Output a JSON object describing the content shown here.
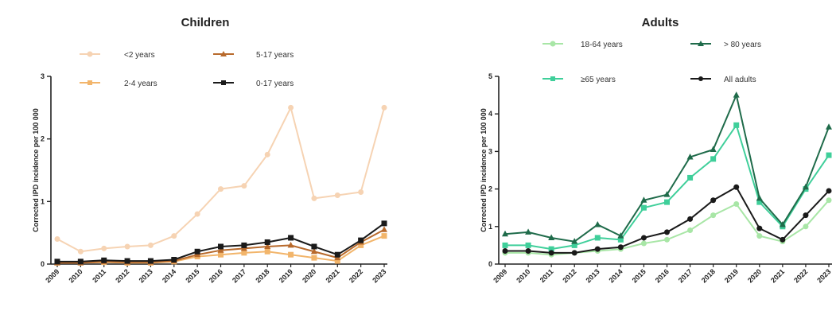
{
  "chart_data": [
    {
      "type": "line",
      "title": "Children",
      "ylabel": "Corrected IPD incidence per 100 000",
      "xlabel": "",
      "categories": [
        "2009",
        "2010",
        "2011",
        "2012",
        "2013",
        "2014",
        "2015",
        "2016",
        "2017",
        "2018",
        "2019",
        "2020",
        "2021",
        "2022",
        "2023"
      ],
      "ylim": [
        0,
        3
      ],
      "yticks": [
        "0",
        "1",
        "2",
        "3"
      ],
      "legend": "top",
      "series": [
        {
          "name": "<2 years",
          "color": "#f6d3b3",
          "marker": "circle",
          "values": [
            0.4,
            0.2,
            0.25,
            0.28,
            0.3,
            0.45,
            0.8,
            1.2,
            1.25,
            1.75,
            2.5,
            1.05,
            1.1,
            1.15,
            2.5
          ]
        },
        {
          "name": "2-4 years",
          "color": "#f2b56b",
          "marker": "square",
          "values": [
            0.02,
            0.02,
            0.03,
            0.02,
            0.02,
            0.04,
            0.12,
            0.15,
            0.18,
            0.2,
            0.15,
            0.1,
            0.05,
            0.3,
            0.45
          ]
        },
        {
          "name": "5-17 years",
          "color": "#b86a2c",
          "marker": "triangle",
          "values": [
            0.02,
            0.02,
            0.04,
            0.03,
            0.03,
            0.05,
            0.15,
            0.22,
            0.25,
            0.28,
            0.3,
            0.2,
            0.1,
            0.35,
            0.55
          ]
        },
        {
          "name": "0-17 years",
          "color": "#1a1a1a",
          "marker": "square",
          "values": [
            0.04,
            0.04,
            0.06,
            0.05,
            0.05,
            0.07,
            0.2,
            0.28,
            0.3,
            0.35,
            0.42,
            0.28,
            0.15,
            0.38,
            0.65
          ]
        }
      ]
    },
    {
      "type": "line",
      "title": "Adults",
      "ylabel": "Corrected IPD incidence per 100 000",
      "xlabel": "",
      "categories": [
        "2009",
        "2010",
        "2011",
        "2012",
        "2013",
        "2014",
        "2015",
        "2016",
        "2017",
        "2018",
        "2019",
        "2020",
        "2021",
        "2022",
        "2023"
      ],
      "ylim": [
        0,
        5
      ],
      "yticks": [
        "0",
        "1",
        "2",
        "3",
        "4",
        "5"
      ],
      "legend": "top",
      "series": [
        {
          "name": "18-64 years",
          "color": "#a8e6a6",
          "marker": "circle",
          "values": [
            0.3,
            0.3,
            0.25,
            0.3,
            0.35,
            0.4,
            0.55,
            0.65,
            0.9,
            1.3,
            1.6,
            0.75,
            0.6,
            1.0,
            1.7
          ]
        },
        {
          "name": "≥65 years",
          "color": "#3fcf9a",
          "marker": "square",
          "values": [
            0.5,
            0.5,
            0.4,
            0.5,
            0.7,
            0.65,
            1.5,
            1.65,
            2.3,
            2.8,
            3.7,
            1.65,
            1.0,
            2.0,
            2.9
          ]
        },
        {
          "name": "> 80 years",
          "color": "#1f6b4a",
          "marker": "triangle",
          "values": [
            0.8,
            0.85,
            0.7,
            0.6,
            1.05,
            0.75,
            1.7,
            1.85,
            2.85,
            3.05,
            4.5,
            1.75,
            1.05,
            2.05,
            3.65
          ]
        },
        {
          "name": "All adults",
          "color": "#1a1a1a",
          "marker": "circle",
          "values": [
            0.35,
            0.35,
            0.3,
            0.3,
            0.4,
            0.45,
            0.7,
            0.85,
            1.2,
            1.7,
            2.05,
            0.95,
            0.65,
            1.3,
            1.95
          ]
        }
      ]
    }
  ]
}
